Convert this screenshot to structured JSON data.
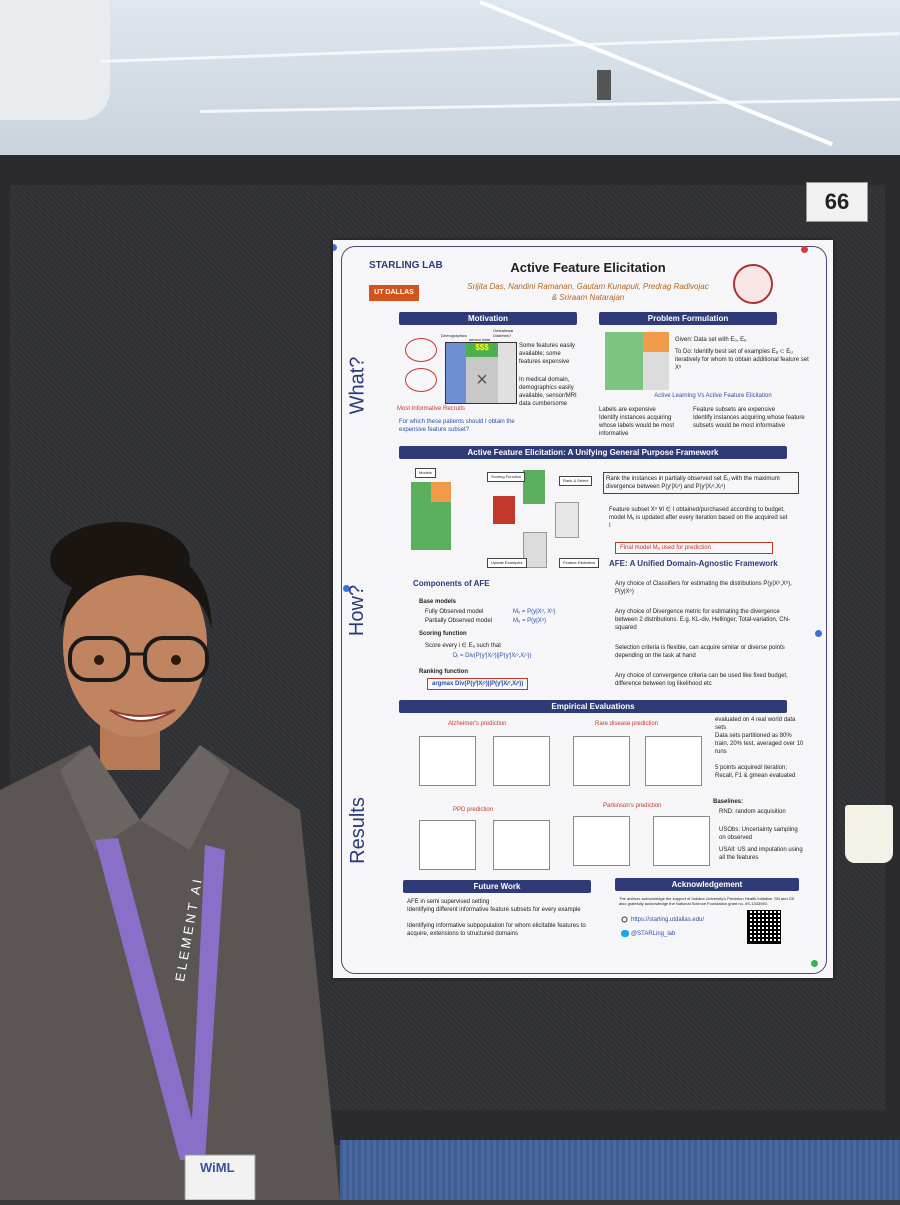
{
  "board_number": "66",
  "poster": {
    "lab_logo": "STARLING LAB",
    "title": "Active Feature Elicitation",
    "authors_line1": "Srijita Das, Nandini Ramanan, Gautam Kunapuli, Predrag Radivojac",
    "authors_line2": "& Sriraam Natarajan",
    "ut_logo": "UT DALLAS",
    "side_labels": {
      "what": "What?",
      "how": "How?",
      "results": "Results"
    },
    "motivation": {
      "header": "Motivation",
      "matrix_labels": [
        "Demographics",
        "sensor data",
        "Gestational Diabetes?"
      ],
      "money": "$$$",
      "caption": "Most Informative Recruits",
      "bullets": [
        "Some features easily available; some features expensive",
        "In medical domain, demographics easily available, sensor/MRI data cumbersome"
      ],
      "question": "For which these patients should I obtain the expensive feature subset?"
    },
    "problem": {
      "header": "Problem Formulation",
      "given": "Given: Data set with E₀, Eᵤ",
      "todo": "To Do: Identify best set of examples Eₐ ⊂ Eᵤ iteratively for whom to obtain additional feature set Xᵘ",
      "compare_title": "Active Learning Vs Active Feature Elicitation",
      "left_bullets": [
        "Labels are expensive",
        "Identify instances acquiring whose labels would be most informative"
      ],
      "right_bullets": [
        "Feature subsets are expensive",
        "Identify instances acquiring whose feature subsets would be most informative"
      ]
    },
    "framework": {
      "header": "Active Feature Elicitation: A Unifying General Purpose Framework",
      "boxes": [
        "Models",
        "Scoring Function",
        "Rank & Select",
        "Update Examples",
        "Feature Elicitation"
      ],
      "rank_text": "Rank the instances in partially observed set Eᵤ with the maximum divergence between P(yⁱ|Xᵢᵒ) and P(yⁱ|Xᵢᵒ,Xᵢᵘ)",
      "subset_text": "Feature subset Xᵘ ∀i ∈ I obtained/purchased according to budget, model Mᵤ is updated after every iteration based on the acquired set I",
      "final_model": "Final model Mₐ used for prediction"
    },
    "components": {
      "header": "Components of AFE",
      "base_models": "Base models",
      "fully": "Fully Observed model",
      "fully_eq": "Mₒ = P(y|Xᵒ, Xᵘ)",
      "partially": "Partially Observed model",
      "partially_eq": "Mᵤ = P(y|Xᵒ)",
      "scoring": "Scoring function",
      "score_text": "Score every i ∈ Eᵤ such that",
      "score_eq": "Dᵢ = Div(P(yⁱ|Xᵢᵒ)||P(yⁱ|Xᵢᵒ,Xᵢᵘ))",
      "ranking": "Ranking function",
      "ranking_eq": "argmax Div(P(yⁱ|Xᵢᵒ)||P(yⁱ|Xᵢᵒ,Xᵢᵘ))"
    },
    "agnostic": {
      "header": "AFE: A Unified Domain-Agnostic Framework",
      "bullets": [
        "Any choice of Classifiers for estimating the distributions P(y|Xᵒ,Xᵘ), P(y|Xᵒ)",
        "Any choice of Divergence metric for estimating the divergence between 2 distributions. E.g. KL-div, Hellinger, Total-variation, Chi-squared",
        "Selection criteria is flexible, can acquire similar or diverse points depending on the task at hand",
        "Any choice of convergence criteria can be used like fixed budget, difference between log likelihood etc"
      ]
    },
    "empirical": {
      "header": "Empirical Evaluations",
      "plot_titles": [
        "Alzheimer's prediction",
        "Rare disease prediction",
        "PPD prediction",
        "Parkinson's prediction"
      ],
      "notes": [
        "evaluated on 4 real world data sets",
        "Data sets partitioned as 80% train, 20% test, averaged over 10 runs",
        "5 points acquired/ iteration; Recall, F1 & gmean evaluated"
      ],
      "baselines_title": "Baselines:",
      "baselines": [
        "RND: random acquisition",
        "USObs: Uncertainty sampling on observed",
        "USAll: US and imputation using all the features"
      ]
    },
    "future": {
      "header": "Future Work",
      "bullets": [
        "AFE in semi supervised setting",
        "Identifying different informative feature subsets for every example",
        "Identifying informative subpopulation for whom elicitable features to acquire, extensions to structured domains"
      ]
    },
    "ack": {
      "header": "Acknowledgement",
      "text": "The authors acknowledge the support of Indiana University's Precision Health Initiative. SN and GK also gratefully acknowledge the National Science Foundation grant no. IIS-1343940.",
      "url": "https://starling.utdallas.edu/",
      "twitter": "@STARLing_lab"
    }
  },
  "lanyard_text": "ELEMENT AI",
  "badge_text": "WiML"
}
